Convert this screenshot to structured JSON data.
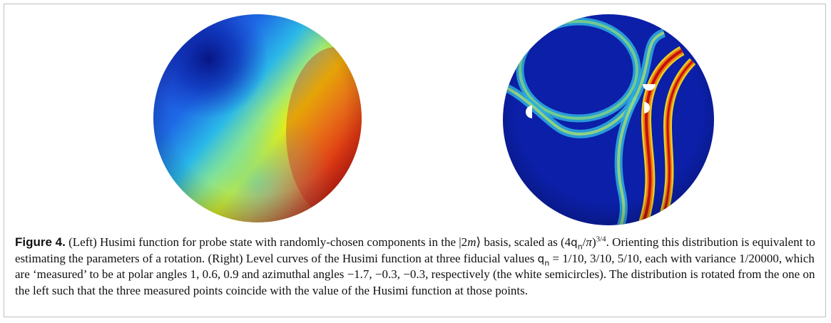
{
  "figure": {
    "label": "Figure 4.",
    "left_panel": "Husimi function for probe state",
    "right_panel": "Level curves of the Husimi function",
    "caption_parts": {
      "p1": "(Left) Husimi function for probe state with randomly-chosen components in the |2",
      "m": "m",
      "p2": "⟩ basis, scaled as (4",
      "q": "q",
      "n": "n",
      "p3": "/",
      "pi": "π",
      "p4": ")",
      "exp": "3/4",
      "p5": ". Orienting this distribution is equivalent to estimating the parameters of a rotation. (Right) Level curves of the Husimi function at three fiducial values ",
      "q2": "q",
      "n2": "n",
      "p6": " = 1/10, 3/10, 5/10, each with variance 1/20000, which are ‘measured’ to be at polar angles 1, 0.6, 0.9 and azimuthal angles −1.7, −0.3, −0.3, respectively (the white semicircles). The distribution is rotated from the one on the left such that the three measured points coincide with the value of the Husimi function at those points."
    }
  },
  "colors": {
    "deep_blue": "#0a1fa0",
    "blue": "#1a4fd8",
    "cyan": "#28c8e8",
    "yellow": "#f5f000",
    "orange": "#f08a10",
    "red": "#c81818"
  }
}
